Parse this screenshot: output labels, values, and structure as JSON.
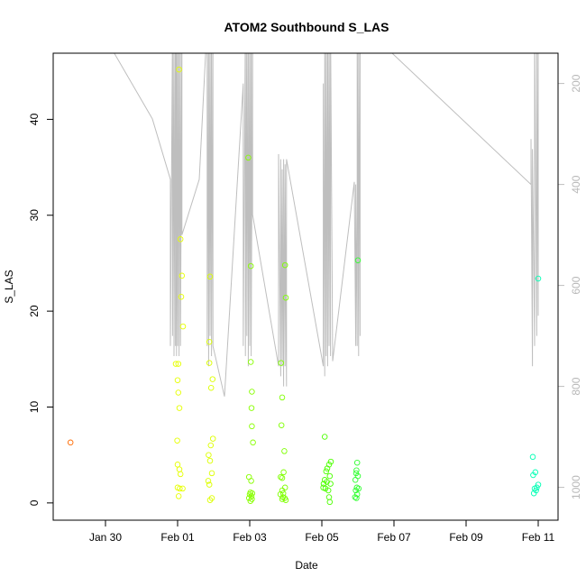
{
  "chart_data": {
    "type": "scatter",
    "title": "ATOM2 Southbound S_LAS",
    "xlabel": "Date",
    "ylabel": "S_LAS",
    "x_tick_labels": [
      "Jan 30",
      "Feb 01",
      "Feb 03",
      "Feb 05",
      "Feb 07",
      "Feb 09",
      "Feb 11"
    ],
    "x_ticks_days": [
      0,
      2,
      4,
      6,
      8,
      10,
      12
    ],
    "xlim_days": [
      -1.45,
      12.55
    ],
    "y_ticks": [
      0,
      10,
      20,
      30,
      40
    ],
    "ylim": [
      -1.8,
      46.9
    ],
    "right_axis_ticks": [
      200,
      400,
      600,
      800,
      1000
    ],
    "right_axis_lim": [
      1065,
      140
    ],
    "right_axis_color": "#bebebe",
    "grid": false,
    "points": [
      {
        "x": -0.97,
        "y": 6.3,
        "color": "#ff6a00"
      },
      {
        "x": 1.95,
        "y": 14.5,
        "color": "#e6ff00"
      },
      {
        "x": 2.02,
        "y": 14.5,
        "color": "#e6ff00"
      },
      {
        "x": 2.0,
        "y": 12.8,
        "color": "#e6ff00"
      },
      {
        "x": 2.02,
        "y": 11.5,
        "color": "#e6ff00"
      },
      {
        "x": 2.05,
        "y": 9.9,
        "color": "#e6ff00"
      },
      {
        "x": 1.99,
        "y": 6.5,
        "color": "#e6ff00"
      },
      {
        "x": 2.0,
        "y": 4.0,
        "color": "#e6ff00"
      },
      {
        "x": 2.05,
        "y": 3.5,
        "color": "#e6ff00"
      },
      {
        "x": 2.08,
        "y": 3.0,
        "color": "#e6ff00"
      },
      {
        "x": 2.0,
        "y": 1.6,
        "color": "#e6ff00"
      },
      {
        "x": 2.06,
        "y": 1.5,
        "color": "#e6ff00"
      },
      {
        "x": 2.14,
        "y": 1.5,
        "color": "#e6ff00"
      },
      {
        "x": 2.03,
        "y": 0.7,
        "color": "#e6ff00"
      },
      {
        "x": 2.04,
        "y": 45.2,
        "color": "#e6ff00"
      },
      {
        "x": 2.08,
        "y": 27.5,
        "color": "#e6ff00"
      },
      {
        "x": 2.12,
        "y": 23.7,
        "color": "#e6ff00"
      },
      {
        "x": 2.1,
        "y": 21.5,
        "color": "#e6ff00"
      },
      {
        "x": 2.15,
        "y": 18.4,
        "color": "#e6ff00"
      },
      {
        "x": 2.9,
        "y": 23.6,
        "color": "#ddff00"
      },
      {
        "x": 2.88,
        "y": 16.8,
        "color": "#ddff00"
      },
      {
        "x": 2.88,
        "y": 14.6,
        "color": "#ddff00"
      },
      {
        "x": 2.97,
        "y": 12.9,
        "color": "#ddff00"
      },
      {
        "x": 2.93,
        "y": 12.0,
        "color": "#ddff00"
      },
      {
        "x": 2.98,
        "y": 6.7,
        "color": "#ddff00"
      },
      {
        "x": 2.92,
        "y": 6.0,
        "color": "#ddff00"
      },
      {
        "x": 2.86,
        "y": 5.0,
        "color": "#ddff00"
      },
      {
        "x": 2.9,
        "y": 4.4,
        "color": "#ddff00"
      },
      {
        "x": 2.95,
        "y": 3.1,
        "color": "#ddff00"
      },
      {
        "x": 2.85,
        "y": 2.3,
        "color": "#ddff00"
      },
      {
        "x": 2.88,
        "y": 1.9,
        "color": "#ddff00"
      },
      {
        "x": 2.95,
        "y": 0.5,
        "color": "#ddff00"
      },
      {
        "x": 2.9,
        "y": 0.3,
        "color": "#ddff00"
      },
      {
        "x": 3.96,
        "y": 36.0,
        "color": "#88ff00"
      },
      {
        "x": 4.03,
        "y": 24.7,
        "color": "#88ff00"
      },
      {
        "x": 4.03,
        "y": 14.7,
        "color": "#88ff00"
      },
      {
        "x": 4.06,
        "y": 11.6,
        "color": "#88ff00"
      },
      {
        "x": 4.05,
        "y": 9.9,
        "color": "#88ff00"
      },
      {
        "x": 4.06,
        "y": 8.0,
        "color": "#88ff00"
      },
      {
        "x": 4.09,
        "y": 6.3,
        "color": "#88ff00"
      },
      {
        "x": 3.98,
        "y": 2.7,
        "color": "#88ff00"
      },
      {
        "x": 4.04,
        "y": 2.3,
        "color": "#88ff00"
      },
      {
        "x": 4.02,
        "y": 1.1,
        "color": "#88ff00"
      },
      {
        "x": 4.07,
        "y": 1.0,
        "color": "#88ff00"
      },
      {
        "x": 4.0,
        "y": 0.9,
        "color": "#88ff00"
      },
      {
        "x": 4.05,
        "y": 0.7,
        "color": "#88ff00"
      },
      {
        "x": 3.98,
        "y": 0.5,
        "color": "#88ff00"
      },
      {
        "x": 4.06,
        "y": 0.4,
        "color": "#88ff00"
      },
      {
        "x": 4.02,
        "y": 0.2,
        "color": "#88ff00"
      },
      {
        "x": 4.98,
        "y": 24.8,
        "color": "#7fff00"
      },
      {
        "x": 5.0,
        "y": 21.4,
        "color": "#7fff00"
      },
      {
        "x": 4.87,
        "y": 14.6,
        "color": "#7fff00"
      },
      {
        "x": 4.9,
        "y": 11.0,
        "color": "#7fff00"
      },
      {
        "x": 4.88,
        "y": 8.1,
        "color": "#7fff00"
      },
      {
        "x": 4.96,
        "y": 5.4,
        "color": "#7fff00"
      },
      {
        "x": 4.94,
        "y": 3.2,
        "color": "#7fff00"
      },
      {
        "x": 4.86,
        "y": 2.7,
        "color": "#7fff00"
      },
      {
        "x": 4.9,
        "y": 2.6,
        "color": "#7fff00"
      },
      {
        "x": 4.98,
        "y": 1.6,
        "color": "#7fff00"
      },
      {
        "x": 4.9,
        "y": 1.3,
        "color": "#7fff00"
      },
      {
        "x": 4.93,
        "y": 1.0,
        "color": "#7fff00"
      },
      {
        "x": 4.85,
        "y": 0.9,
        "color": "#7fff00"
      },
      {
        "x": 4.92,
        "y": 0.6,
        "color": "#7fff00"
      },
      {
        "x": 4.97,
        "y": 0.5,
        "color": "#7fff00"
      },
      {
        "x": 4.9,
        "y": 0.4,
        "color": "#7fff00"
      },
      {
        "x": 5.0,
        "y": 0.3,
        "color": "#7fff00"
      },
      {
        "x": 6.08,
        "y": 6.9,
        "color": "#4cff00"
      },
      {
        "x": 6.25,
        "y": 4.3,
        "color": "#4cff00"
      },
      {
        "x": 6.2,
        "y": 4.0,
        "color": "#4cff00"
      },
      {
        "x": 6.15,
        "y": 3.6,
        "color": "#4cff00"
      },
      {
        "x": 6.12,
        "y": 3.3,
        "color": "#4cff00"
      },
      {
        "x": 6.22,
        "y": 2.8,
        "color": "#4cff00"
      },
      {
        "x": 6.08,
        "y": 2.4,
        "color": "#4cff00"
      },
      {
        "x": 6.14,
        "y": 2.2,
        "color": "#4cff00"
      },
      {
        "x": 6.05,
        "y": 2.0,
        "color": "#4cff00"
      },
      {
        "x": 6.24,
        "y": 2.0,
        "color": "#4cff00"
      },
      {
        "x": 6.04,
        "y": 1.6,
        "color": "#4cff00"
      },
      {
        "x": 6.1,
        "y": 1.5,
        "color": "#4cff00"
      },
      {
        "x": 6.18,
        "y": 1.3,
        "color": "#4cff00"
      },
      {
        "x": 6.2,
        "y": 0.6,
        "color": "#4cff00"
      },
      {
        "x": 6.22,
        "y": 0.1,
        "color": "#4cff00"
      },
      {
        "x": 7.0,
        "y": 25.3,
        "color": "#30ff30"
      },
      {
        "x": 6.98,
        "y": 4.2,
        "color": "#30ff30"
      },
      {
        "x": 6.96,
        "y": 3.4,
        "color": "#30ff30"
      },
      {
        "x": 6.95,
        "y": 3.1,
        "color": "#30ff30"
      },
      {
        "x": 7.0,
        "y": 2.8,
        "color": "#30ff30"
      },
      {
        "x": 6.93,
        "y": 2.4,
        "color": "#30ff30"
      },
      {
        "x": 6.97,
        "y": 1.6,
        "color": "#30ff30"
      },
      {
        "x": 7.02,
        "y": 1.5,
        "color": "#30ff30"
      },
      {
        "x": 6.94,
        "y": 1.3,
        "color": "#30ff30"
      },
      {
        "x": 6.98,
        "y": 0.9,
        "color": "#30ff30"
      },
      {
        "x": 6.92,
        "y": 0.6,
        "color": "#30ff30"
      },
      {
        "x": 6.96,
        "y": 0.5,
        "color": "#30ff30"
      },
      {
        "x": 12.0,
        "y": 23.4,
        "color": "#00ffb4"
      },
      {
        "x": 11.85,
        "y": 4.8,
        "color": "#00ffb4"
      },
      {
        "x": 11.92,
        "y": 3.2,
        "color": "#00ffb4"
      },
      {
        "x": 11.86,
        "y": 2.9,
        "color": "#00ffb4"
      },
      {
        "x": 12.0,
        "y": 1.9,
        "color": "#00ffb4"
      },
      {
        "x": 11.96,
        "y": 1.6,
        "color": "#00ffb4"
      },
      {
        "x": 11.9,
        "y": 1.5,
        "color": "#00ffb4"
      },
      {
        "x": 11.94,
        "y": 1.3,
        "color": "#00ffb4"
      },
      {
        "x": 11.88,
        "y": 1.0,
        "color": "#00ffb4"
      }
    ],
    "depth_line": {
      "color": "#bebebe",
      "x": [
        -1.45,
        0.0,
        1.3,
        1.8,
        1.8,
        1.86,
        1.86,
        1.9,
        1.9,
        1.94,
        1.94,
        1.97,
        1.97,
        2.0,
        2.0,
        2.04,
        2.04,
        2.08,
        2.08,
        2.12,
        2.12,
        2.6,
        2.82,
        2.82,
        2.86,
        2.86,
        2.9,
        2.9,
        2.94,
        2.94,
        2.98,
        2.98,
        3.3,
        3.82,
        3.82,
        3.88,
        3.88,
        3.92,
        3.92,
        3.96,
        3.96,
        4.0,
        4.0,
        4.04,
        4.04,
        4.08,
        4.08,
        4.8,
        4.8,
        4.86,
        4.86,
        4.9,
        4.9,
        4.94,
        4.94,
        4.98,
        4.98,
        5.02,
        5.02,
        6.04,
        6.04,
        6.08,
        6.08,
        6.12,
        6.12,
        6.16,
        6.16,
        6.2,
        6.2,
        6.24,
        6.24,
        6.3,
        6.9,
        6.9,
        6.94,
        6.94,
        6.98,
        6.98,
        7.02,
        7.02,
        7.06,
        7.06,
        11.8,
        11.8,
        11.84,
        11.84,
        11.9,
        11.9,
        11.96,
        11.96,
        12.0,
        12.0
      ],
      "depth": [
        110,
        110,
        270,
        390,
        720,
        80,
        700,
        80,
        740,
        80,
        720,
        80,
        740,
        80,
        720,
        80,
        740,
        80,
        720,
        80,
        500,
        390,
        80,
        720,
        80,
        760,
        80,
        700,
        80,
        740,
        80,
        720,
        820,
        200,
        720,
        80,
        740,
        80,
        700,
        80,
        760,
        80,
        720,
        80,
        740,
        80,
        460,
        760,
        340,
        780,
        350,
        760,
        370,
        800,
        350,
        760,
        360,
        800,
        350,
        760,
        200,
        780,
        80,
        740,
        80,
        760,
        80,
        720,
        80,
        740,
        80,
        750,
        395,
        400,
        720,
        400,
        720,
        80,
        740,
        80,
        700,
        80,
        400,
        310,
        760,
        330,
        720,
        80,
        700,
        80,
        660,
        80
      ]
    }
  }
}
